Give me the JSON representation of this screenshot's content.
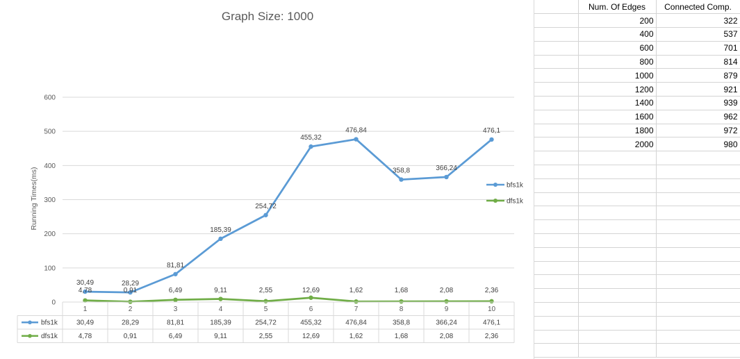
{
  "chart_data": {
    "type": "line",
    "title": "Graph Size: 1000",
    "xlabel": "",
    "ylabel": "Running Times(ms)",
    "categories": [
      "1",
      "2",
      "3",
      "4",
      "5",
      "6",
      "7",
      "8",
      "9",
      "10"
    ],
    "ylim": [
      0,
      600
    ],
    "yticks": [
      0,
      100,
      200,
      300,
      400,
      500,
      600
    ],
    "grid": true,
    "legend": "right",
    "data_table": true,
    "series": [
      {
        "name": "bfs1k",
        "color": "#5b9bd5",
        "values": [
          30.49,
          28.29,
          81.81,
          185.39,
          254.72,
          455.32,
          476.84,
          358.8,
          366.24,
          476.1
        ],
        "labels": [
          "30,49",
          "28,29",
          "81,81",
          "185,39",
          "254,72",
          "455,32",
          "476,84",
          "358,8",
          "366,24",
          "476,1"
        ]
      },
      {
        "name": "dfs1k",
        "color": "#70ad47",
        "values": [
          4.78,
          0.91,
          6.49,
          9.11,
          2.55,
          12.69,
          1.62,
          1.68,
          2.08,
          2.36
        ],
        "labels": [
          "4,78",
          "0,91",
          "6,49",
          "9,11",
          "2,55",
          "12,69",
          "1,62",
          "1,68",
          "2,08",
          "2,36"
        ]
      }
    ]
  },
  "sheet": {
    "headers": [
      "Num. Of Edges",
      "Connected Comp."
    ],
    "rows": [
      [
        "200",
        "322"
      ],
      [
        "400",
        "537"
      ],
      [
        "600",
        "701"
      ],
      [
        "800",
        "814"
      ],
      [
        "1000",
        "879"
      ],
      [
        "1200",
        "921"
      ],
      [
        "1400",
        "939"
      ],
      [
        "1600",
        "962"
      ],
      [
        "1800",
        "972"
      ],
      [
        "2000",
        "980"
      ]
    ],
    "empty_rows": 15
  }
}
